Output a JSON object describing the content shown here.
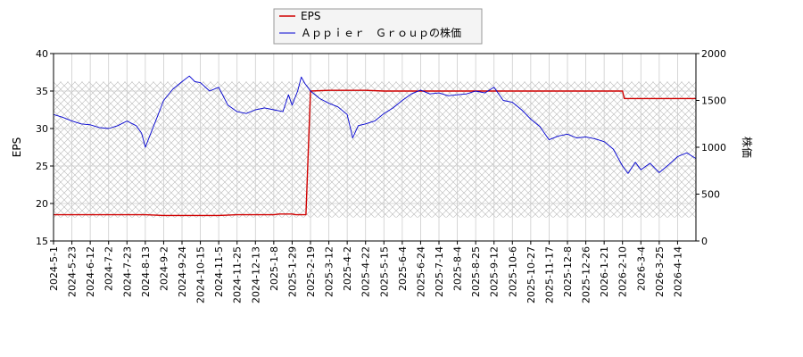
{
  "chart_data": {
    "type": "line",
    "legend": {
      "placement": "top-center",
      "entries": [
        "EPS",
        "Ａｐｐｉｅｒ　Ｇｒｏｕｐの株価"
      ]
    },
    "grid": true,
    "hatched_band_right_axis": [
      250,
      1700
    ],
    "x_axis": {
      "ticks": [
        "2024-5-1",
        "2024-5-23",
        "2024-6-12",
        "2024-7-2",
        "2024-7-23",
        "2024-8-13",
        "2024-9-2",
        "2024-9-24",
        "2024-10-15",
        "2024-11-5",
        "2024-11-25",
        "2024-12-13",
        "2025-1-8",
        "2025-1-29",
        "2025-2-19",
        "2025-3-12",
        "2025-4-2",
        "2025-4-22",
        "2025-5-15",
        "2025-6-4",
        "2025-6-24",
        "2025-7-14",
        "2025-8-4",
        "2025-8-25",
        "2025-9-12",
        "2025-10-6",
        "2025-10-27",
        "2025-11-17",
        "2025-12-8",
        "2025-12-26",
        "2026-1-21",
        "2026-2-10",
        "2026-3-4",
        "2026-3-25",
        "2026-4-14"
      ]
    },
    "y_left": {
      "label": "EPS",
      "lim": [
        15,
        40
      ],
      "ticks": [
        "15",
        "20",
        "25",
        "30",
        "35",
        "40"
      ]
    },
    "y_right": {
      "label": "株価",
      "lim": [
        0,
        2000
      ],
      "ticks": [
        "0",
        "500",
        "1000",
        "1500",
        "2000"
      ]
    },
    "series": [
      {
        "name": "EPS",
        "axis": "left",
        "color": "#d00000",
        "points": [
          [
            0,
            18.5
          ],
          [
            5,
            18.5
          ],
          [
            6,
            18.4
          ],
          [
            9,
            18.4
          ],
          [
            10,
            18.5
          ],
          [
            12,
            18.5
          ],
          [
            12.3,
            18.6
          ],
          [
            13,
            18.6
          ],
          [
            13.2,
            18.5
          ],
          [
            13.75,
            18.5
          ],
          [
            14,
            35.0
          ],
          [
            15,
            35.1
          ],
          [
            17,
            35.1
          ],
          [
            18,
            35.0
          ],
          [
            23,
            35.0
          ],
          [
            24,
            35.0
          ],
          [
            30,
            35.0
          ],
          [
            31,
            35.0
          ],
          [
            31.1,
            34.0
          ],
          [
            35,
            34.0
          ]
        ]
      },
      {
        "name": "Ａｐｐｉｅｒ　Ｇｒｏｕｐの株価",
        "axis": "right",
        "color": "#0000d0",
        "points": [
          [
            0,
            1350
          ],
          [
            0.5,
            1320
          ],
          [
            1,
            1280
          ],
          [
            1.5,
            1250
          ],
          [
            2,
            1240
          ],
          [
            2.5,
            1210
          ],
          [
            3,
            1200
          ],
          [
            3.5,
            1230
          ],
          [
            4,
            1280
          ],
          [
            4.5,
            1230
          ],
          [
            4.8,
            1150
          ],
          [
            5,
            1000
          ],
          [
            5.3,
            1150
          ],
          [
            5.7,
            1350
          ],
          [
            6,
            1500
          ],
          [
            6.5,
            1620
          ],
          [
            7,
            1700
          ],
          [
            7.4,
            1760
          ],
          [
            7.7,
            1700
          ],
          [
            8,
            1690
          ],
          [
            8.5,
            1600
          ],
          [
            9,
            1640
          ],
          [
            9.5,
            1450
          ],
          [
            10,
            1380
          ],
          [
            10.5,
            1360
          ],
          [
            11,
            1400
          ],
          [
            11.5,
            1420
          ],
          [
            12,
            1400
          ],
          [
            12.5,
            1380
          ],
          [
            12.8,
            1560
          ],
          [
            13,
            1450
          ],
          [
            13.3,
            1600
          ],
          [
            13.5,
            1750
          ],
          [
            13.7,
            1680
          ],
          [
            14,
            1600
          ],
          [
            14.5,
            1520
          ],
          [
            15,
            1470
          ],
          [
            15.5,
            1430
          ],
          [
            16,
            1350
          ],
          [
            16.3,
            1100
          ],
          [
            16.6,
            1230
          ],
          [
            17,
            1250
          ],
          [
            17.5,
            1280
          ],
          [
            18,
            1360
          ],
          [
            18.5,
            1420
          ],
          [
            19,
            1500
          ],
          [
            19.5,
            1570
          ],
          [
            20,
            1610
          ],
          [
            20.5,
            1570
          ],
          [
            21,
            1580
          ],
          [
            21.5,
            1550
          ],
          [
            22,
            1560
          ],
          [
            22.5,
            1570
          ],
          [
            23,
            1600
          ],
          [
            23.5,
            1580
          ],
          [
            24,
            1640
          ],
          [
            24.5,
            1500
          ],
          [
            25,
            1480
          ],
          [
            25.5,
            1400
          ],
          [
            26,
            1300
          ],
          [
            26.5,
            1220
          ],
          [
            27,
            1080
          ],
          [
            27.5,
            1120
          ],
          [
            28,
            1140
          ],
          [
            28.5,
            1100
          ],
          [
            29,
            1110
          ],
          [
            29.5,
            1090
          ],
          [
            30,
            1060
          ],
          [
            30.5,
            980
          ],
          [
            31,
            800
          ],
          [
            31.3,
            720
          ],
          [
            31.7,
            840
          ],
          [
            32,
            760
          ],
          [
            32.5,
            830
          ],
          [
            33,
            730
          ],
          [
            33.5,
            810
          ],
          [
            34,
            900
          ],
          [
            34.5,
            940
          ],
          [
            35,
            880
          ]
        ]
      }
    ]
  }
}
